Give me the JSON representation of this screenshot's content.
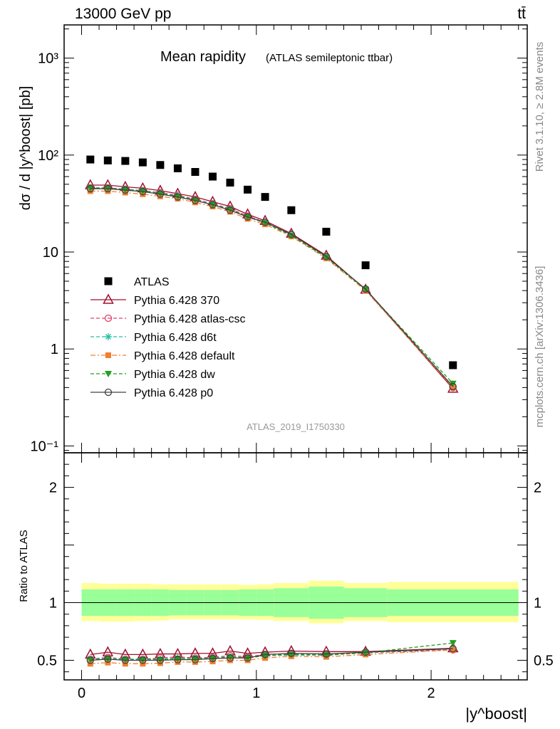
{
  "header": {
    "energy_label": "13000 GeV pp",
    "process_label": "tt̄"
  },
  "side_text": {
    "top": "Rivet 3.1.10, ≥ 2.8M events",
    "bottom": "mcplots.cern.ch [arXiv:1306.3436]"
  },
  "chart_data": {
    "type": "scatter",
    "title": "Mean rapidity",
    "subtitle": "(ATLAS semileptonic ttbar)",
    "analysis_id": "ATLAS_2019_I1750330",
    "ylabel": "dσ / d |y^boost| [pb]",
    "xlabel": "|y^boost|",
    "xlim": [
      -0.1,
      2.55
    ],
    "ylim": [
      0.085,
      2200
    ],
    "y_scale": "log",
    "x_ticks": [
      "0",
      "1",
      "2"
    ],
    "y_ticks": [
      "10⁻¹",
      "1",
      "10",
      "10²",
      "10³"
    ],
    "legend_position": "center-left",
    "x": [
      0.05,
      0.15,
      0.25,
      0.35,
      0.45,
      0.55,
      0.65,
      0.75,
      0.85,
      0.95,
      1.05,
      1.2,
      1.4,
      1.625,
      2.125
    ],
    "series": [
      {
        "name": "ATLAS",
        "color": "#000000",
        "marker": "square",
        "values": [
          90,
          88,
          87,
          84,
          79,
          73,
          67,
          60,
          52,
          44,
          37,
          27,
          16.2,
          7.3,
          0.68
        ]
      },
      {
        "name": "Pythia 6.428 370",
        "color": "#a01030",
        "marker": "triangle-open",
        "dash": "solid",
        "values": [
          49,
          49,
          47,
          45.5,
          43,
          40,
          37,
          33,
          29.5,
          24.5,
          21,
          15.5,
          9.2,
          4.1,
          0.39
        ]
      },
      {
        "name": "Pythia 6.428 atlas-csc",
        "color": "#e0406a",
        "marker": "circle-open",
        "dash": "dashed",
        "values": [
          46,
          46,
          44.5,
          43,
          41,
          38.5,
          35,
          31.5,
          28,
          23.5,
          20.3,
          15,
          8.8,
          4.1,
          0.4
        ]
      },
      {
        "name": "Pythia 6.428 d6t",
        "color": "#20c0a0",
        "marker": "star",
        "dash": "dashed",
        "values": [
          46,
          45.5,
          44.5,
          43,
          40.5,
          38,
          34.5,
          31.3,
          27.5,
          23,
          20,
          14.7,
          8.8,
          4.1,
          0.41
        ]
      },
      {
        "name": "Pythia 6.428 default",
        "color": "#f08030",
        "marker": "square-filled",
        "dash": "dashdot",
        "values": [
          42.5,
          42.5,
          41,
          39.5,
          37.5,
          35.5,
          32.5,
          29.5,
          26,
          22,
          19.3,
          14.5,
          8.6,
          4,
          0.4
        ]
      },
      {
        "name": "Pythia 6.428 dw",
        "color": "#20a020",
        "marker": "triangle-down-filled",
        "dash": "dashed",
        "values": [
          45.5,
          45.5,
          44,
          42.5,
          40,
          37.5,
          34.5,
          30.8,
          27.5,
          23,
          20,
          14.8,
          8.8,
          4.1,
          0.44
        ]
      },
      {
        "name": "Pythia 6.428 p0",
        "color": "#404040",
        "marker": "circle-open",
        "dash": "solid",
        "values": [
          45,
          45,
          43.5,
          42,
          39.5,
          37,
          34,
          30.8,
          27,
          23,
          20.3,
          15.2,
          9,
          4.15,
          0.41
        ]
      }
    ],
    "ratio_panel": {
      "ylabel": "Ratio to ATLAS",
      "ylim": [
        0.33,
        2.3
      ],
      "y_ticks": [
        "0.5",
        "1",
        "2"
      ],
      "band_edges": [
        0,
        0.1,
        0.2,
        0.3,
        0.4,
        0.5,
        0.6,
        0.7,
        0.8,
        0.9,
        1.0,
        1.1,
        1.3,
        1.5,
        1.75,
        2.5
      ],
      "band_inner": [
        [
          0.885,
          1.115
        ],
        [
          0.885,
          1.115
        ],
        [
          0.885,
          1.115
        ],
        [
          0.885,
          1.115
        ],
        [
          0.885,
          1.115
        ],
        [
          0.89,
          1.11
        ],
        [
          0.89,
          1.11
        ],
        [
          0.89,
          1.11
        ],
        [
          0.89,
          1.11
        ],
        [
          0.885,
          1.115
        ],
        [
          0.885,
          1.115
        ],
        [
          0.875,
          1.125
        ],
        [
          0.86,
          1.14
        ],
        [
          0.875,
          1.125
        ],
        [
          0.885,
          1.115
        ]
      ],
      "band_outer": [
        [
          0.84,
          1.17
        ],
        [
          0.835,
          1.165
        ],
        [
          0.835,
          1.165
        ],
        [
          0.84,
          1.165
        ],
        [
          0.845,
          1.16
        ],
        [
          0.855,
          1.16
        ],
        [
          0.855,
          1.16
        ],
        [
          0.855,
          1.16
        ],
        [
          0.855,
          1.16
        ],
        [
          0.855,
          1.155
        ],
        [
          0.85,
          1.16
        ],
        [
          0.84,
          1.17
        ],
        [
          0.82,
          1.19
        ],
        [
          0.84,
          1.17
        ],
        [
          0.83,
          1.18
        ]
      ],
      "series": [
        {
          "name": "Pythia 6.428 370",
          "values": [
            0.55,
            0.57,
            0.55,
            0.55,
            0.555,
            0.555,
            0.56,
            0.56,
            0.58,
            0.56,
            0.57,
            0.58,
            0.575,
            0.575,
            0.605
          ]
        },
        {
          "name": "Pythia 6.428 atlas-csc",
          "values": [
            0.51,
            0.525,
            0.51,
            0.51,
            0.52,
            0.53,
            0.52,
            0.525,
            0.54,
            0.53,
            0.55,
            0.555,
            0.545,
            0.565,
            0.59
          ]
        },
        {
          "name": "Pythia 6.428 d6t",
          "values": [
            0.51,
            0.515,
            0.51,
            0.51,
            0.51,
            0.52,
            0.515,
            0.52,
            0.53,
            0.52,
            0.54,
            0.545,
            0.545,
            0.565,
            0.6
          ]
        },
        {
          "name": "Pythia 6.428 default",
          "values": [
            0.47,
            0.48,
            0.47,
            0.47,
            0.475,
            0.485,
            0.485,
            0.49,
            0.5,
            0.5,
            0.52,
            0.535,
            0.53,
            0.55,
            0.59
          ]
        },
        {
          "name": "Pythia 6.428 dw",
          "values": [
            0.505,
            0.51,
            0.505,
            0.505,
            0.505,
            0.515,
            0.515,
            0.515,
            0.53,
            0.52,
            0.54,
            0.55,
            0.545,
            0.565,
            0.65
          ]
        },
        {
          "name": "Pythia 6.428 p0",
          "values": [
            0.5,
            0.51,
            0.5,
            0.5,
            0.5,
            0.505,
            0.505,
            0.515,
            0.52,
            0.52,
            0.55,
            0.56,
            0.555,
            0.57,
            0.6
          ]
        }
      ]
    }
  }
}
